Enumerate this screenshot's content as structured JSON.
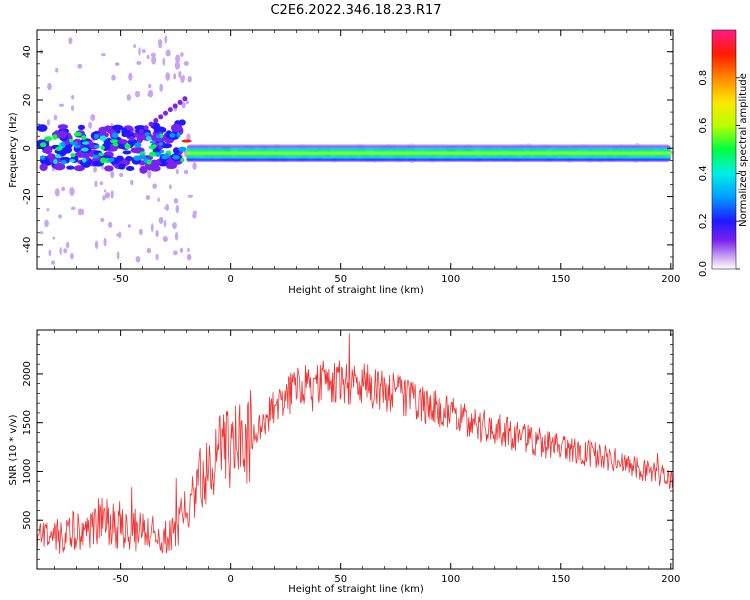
{
  "title": "C2E6.2022.346.18.23.R17",
  "chart_data": [
    {
      "type": "heatmap",
      "name": "spectrogram",
      "xlabel": "Height of straight line (km)",
      "ylabel": "Frequency (Hz)",
      "xlim": [
        -88,
        201
      ],
      "ylim": [
        -50,
        49
      ],
      "xticks": [
        -50,
        0,
        50,
        100,
        150,
        200
      ],
      "yticks": [
        -40,
        -20,
        0,
        20,
        40
      ],
      "colorbar": {
        "label": "Normalized spectral amplitude",
        "range": [
          0.0,
          1.0
        ],
        "ticks": [
          "0.0",
          "0.2",
          "0.4",
          "0.6",
          "0.8"
        ],
        "colormap": [
          "#ffffff",
          "#c9a6f0",
          "#7a22ee",
          "#1f19ff",
          "#009cff",
          "#00f0e6",
          "#00ff40",
          "#b8ff00",
          "#ffe600",
          "#ff8800",
          "#ff1a00",
          "#ff1a88"
        ]
      },
      "main_band": {
        "center_hz": -2,
        "from_km": -20,
        "to_km": 200
      }
    },
    {
      "type": "line",
      "name": "snr",
      "xlabel": "Height of straight line (km)",
      "ylabel": "SNR (10 * v/v)",
      "xlim": [
        -88,
        201
      ],
      "ylim": [
        0,
        2450
      ],
      "xticks": [
        -50,
        0,
        50,
        100,
        150,
        200
      ],
      "yticks": [
        500,
        1000,
        1500,
        2000
      ],
      "series": [
        {
          "name": "SNR",
          "color": "#ee3333",
          "x": [
            -88,
            -80,
            -70,
            -60,
            -50,
            -40,
            -30,
            -25,
            -20,
            -15,
            -10,
            -5,
            0,
            10,
            20,
            30,
            40,
            50,
            60,
            70,
            80,
            90,
            100,
            110,
            120,
            130,
            140,
            150,
            160,
            170,
            180,
            190,
            201
          ],
          "y": [
            300,
            320,
            400,
            480,
            450,
            380,
            320,
            380,
            560,
            880,
            1050,
            1170,
            1240,
            1380,
            1650,
            1870,
            1920,
            1920,
            1890,
            1840,
            1760,
            1660,
            1580,
            1480,
            1450,
            1350,
            1300,
            1240,
            1200,
            1140,
            1070,
            1000,
            920
          ]
        }
      ]
    }
  ]
}
